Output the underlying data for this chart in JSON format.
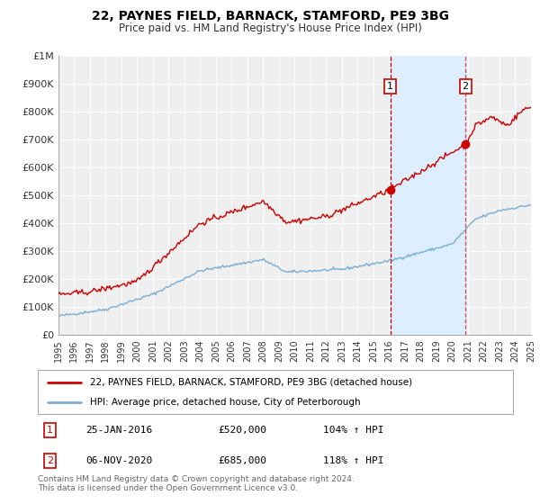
{
  "title": "22, PAYNES FIELD, BARNACK, STAMFORD, PE9 3BG",
  "subtitle": "Price paid vs. HM Land Registry's House Price Index (HPI)",
  "ylim": [
    0,
    1000000
  ],
  "xlim": [
    1995,
    2025
  ],
  "background_color": "#ffffff",
  "plot_bg_color": "#efefef",
  "grid_color": "#ffffff",
  "property_color": "#cc0000",
  "hpi_color": "#7aadd4",
  "shade_color": "#ddeeff",
  "sale1_x": 2016.07,
  "sale1_y": 520000,
  "sale2_x": 2020.85,
  "sale2_y": 685000,
  "legend_property": "22, PAYNES FIELD, BARNACK, STAMFORD, PE9 3BG (detached house)",
  "legend_hpi": "HPI: Average price, detached house, City of Peterborough",
  "note1_num": "1",
  "note1_date": "25-JAN-2016",
  "note1_price": "£520,000",
  "note1_hpi": "104% ↑ HPI",
  "note2_num": "2",
  "note2_date": "06-NOV-2020",
  "note2_price": "£685,000",
  "note2_hpi": "118% ↑ HPI",
  "footnote": "Contains HM Land Registry data © Crown copyright and database right 2024.\nThis data is licensed under the Open Government Licence v3.0.",
  "yticks": [
    0,
    100000,
    200000,
    300000,
    400000,
    500000,
    600000,
    700000,
    800000,
    900000,
    1000000
  ],
  "ytick_labels": [
    "£0",
    "£100K",
    "£200K",
    "£300K",
    "£400K",
    "£500K",
    "£600K",
    "£700K",
    "£800K",
    "£900K",
    "£1M"
  ]
}
